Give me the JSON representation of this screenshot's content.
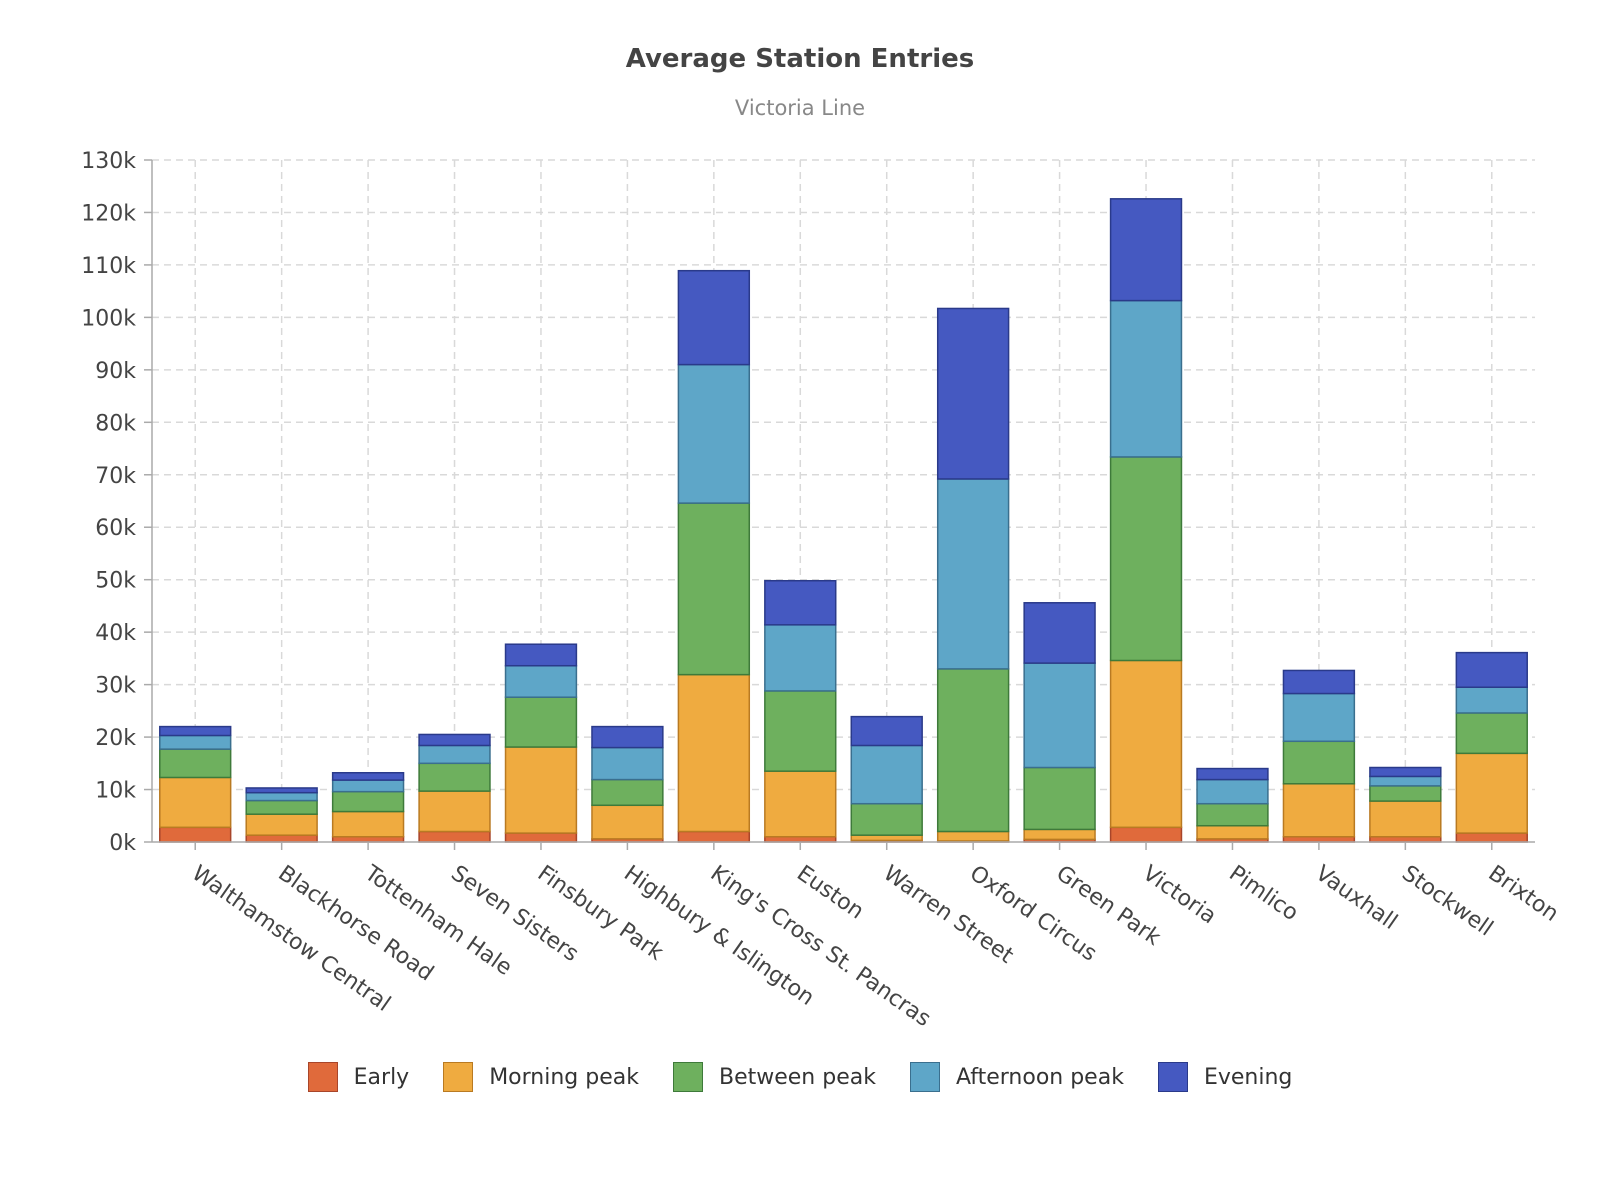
{
  "chart_data": {
    "type": "bar",
    "stacked": true,
    "title": "Average Station Entries",
    "subtitle": "Victoria Line",
    "xlabel": "",
    "ylabel": "",
    "ylim": [
      0,
      130000
    ],
    "yticks": [
      0,
      10000,
      20000,
      30000,
      40000,
      50000,
      60000,
      70000,
      80000,
      90000,
      100000,
      110000,
      120000,
      130000
    ],
    "ytick_labels": [
      "0k",
      "10k",
      "20k",
      "30k",
      "40k",
      "50k",
      "60k",
      "70k",
      "80k",
      "90k",
      "100k",
      "110k",
      "120k",
      "130k"
    ],
    "grid": true,
    "legend_position": "bottom",
    "categories": [
      "Walthamstow Central",
      "Blackhorse Road",
      "Tottenham Hale",
      "Seven Sisters",
      "Finsbury Park",
      "Highbury & Islington",
      "King's Cross St. Pancras",
      "Euston",
      "Warren Street",
      "Oxford Circus",
      "Green Park",
      "Victoria",
      "Pimlico",
      "Vauxhall",
      "Stockwell",
      "Brixton"
    ],
    "series": [
      {
        "name": "Early",
        "color": "#e06a3b",
        "stroke": "#a8452a",
        "values": [
          2800,
          1300,
          1000,
          2000,
          1700,
          600,
          2000,
          1000,
          300,
          200,
          500,
          2800,
          600,
          1000,
          1000,
          1700
        ]
      },
      {
        "name": "Morning peak",
        "color": "#efab40",
        "stroke": "#b97a22",
        "values": [
          9500,
          4000,
          4800,
          7700,
          16400,
          6400,
          29900,
          12500,
          1000,
          1800,
          1900,
          31800,
          2500,
          10100,
          6800,
          15200
        ]
      },
      {
        "name": "Between peak",
        "color": "#6eb05e",
        "stroke": "#3e7a3a",
        "values": [
          5400,
          2600,
          3800,
          5300,
          9500,
          4900,
          32700,
          15300,
          6000,
          31000,
          11800,
          38800,
          4200,
          8100,
          2900,
          7700
        ]
      },
      {
        "name": "Afternoon peak",
        "color": "#5ea6c8",
        "stroke": "#3a6f8e",
        "values": [
          2600,
          1500,
          2200,
          3400,
          6000,
          6100,
          26400,
          12600,
          11100,
          36200,
          19900,
          29800,
          4600,
          9100,
          1800,
          4900
        ]
      },
      {
        "name": "Evening",
        "color": "#4559c1",
        "stroke": "#2a3a8a",
        "values": [
          1700,
          900,
          1400,
          2100,
          4100,
          4000,
          17900,
          8400,
          5500,
          32500,
          11500,
          19400,
          2100,
          4400,
          1700,
          6600
        ]
      }
    ]
  }
}
